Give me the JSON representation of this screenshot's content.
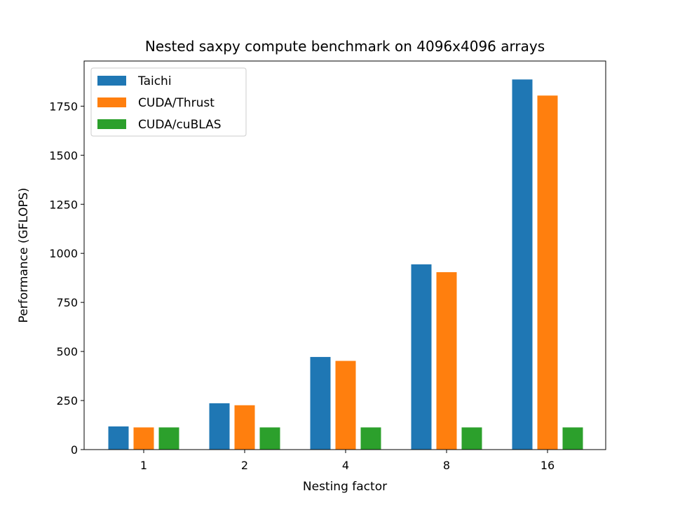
{
  "chart_data": {
    "type": "bar",
    "title": "Nested saxpy compute benchmark on 4096x4096 arrays",
    "xlabel": "Nesting factor",
    "ylabel": "Performance (GFLOPS)",
    "categories": [
      "1",
      "2",
      "4",
      "8",
      "16"
    ],
    "ylim": [
      0,
      1980
    ],
    "yticks": [
      0,
      250,
      500,
      750,
      1000,
      1250,
      1500,
      1750
    ],
    "legend_position": "top-left",
    "grid": false,
    "series": [
      {
        "name": "Taichi",
        "color": "#1f77b4",
        "values": [
          118,
          236,
          472,
          944,
          1886
        ]
      },
      {
        "name": "CUDA/Thrust",
        "color": "#ff7f0e",
        "values": [
          113,
          226,
          452,
          904,
          1804
        ]
      },
      {
        "name": "CUDA/cuBLAS",
        "color": "#2ca02c",
        "values": [
          113,
          113,
          113,
          113,
          113
        ]
      }
    ]
  }
}
